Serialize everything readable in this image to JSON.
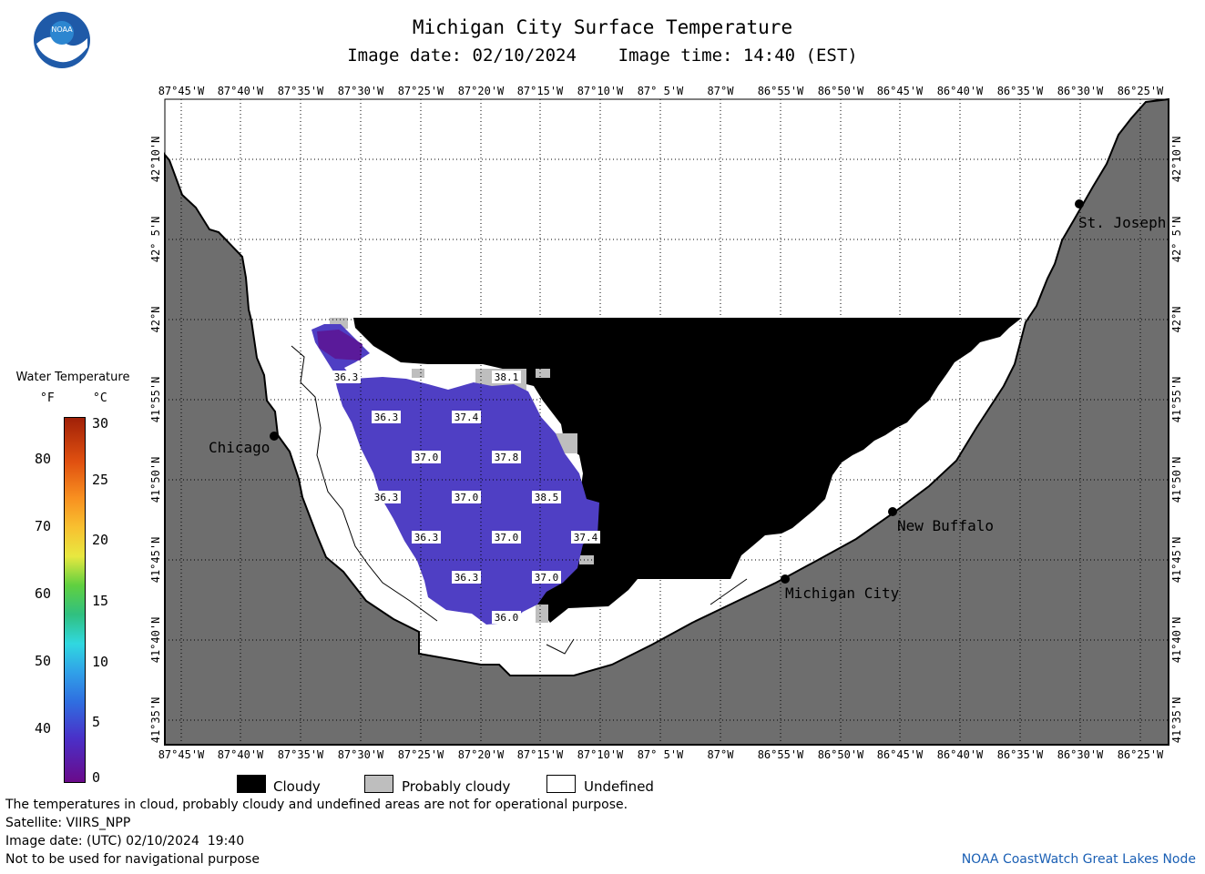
{
  "header": {
    "title": "Michigan City Surface Temperature",
    "subtitle": "Image date: 02/10/2024    Image time: 14:40 (EST)"
  },
  "logo": {
    "text": "NOAA",
    "icon": "noaa-logo-icon"
  },
  "map": {
    "lon_labels": [
      "87°45'W",
      "87°40'W",
      "87°35'W",
      "87°30'W",
      "87°25'W",
      "87°20'W",
      "87°15'W",
      "87°10'W",
      "87° 5'W",
      "87°W",
      "86°55'W",
      "86°50'W",
      "86°45'W",
      "86°40'W",
      "86°35'W",
      "86°30'W",
      "86°25'W"
    ],
    "lat_labels": [
      "42°10'N",
      "42° 5'N",
      "42°N",
      "41°55'N",
      "41°50'N",
      "41°45'N",
      "41°40'N",
      "41°35'N"
    ],
    "cities": [
      {
        "name": "Chicago",
        "icon": "city-dot-icon"
      },
      {
        "name": "St. Joseph",
        "icon": "city-dot-icon"
      },
      {
        "name": "New Buffalo",
        "icon": "city-dot-icon"
      },
      {
        "name": "Michigan City",
        "icon": "city-dot-icon"
      }
    ],
    "temperature_labels": [
      "36.3",
      "38.1",
      "36.3",
      "37.4",
      "37.0",
      "37.8",
      "36.3",
      "37.0",
      "38.5",
      "36.3",
      "37.0",
      "37.4",
      "36.3",
      "37.0",
      "36.0"
    ],
    "colors": {
      "land": "#6e6e6e",
      "cloudy": "#000000",
      "probably_cloudy": "#bebebe",
      "undefined": "#ffffff",
      "water_temp": "#4f3fc4"
    }
  },
  "legend": {
    "title": "Water Temperature",
    "f_header": "°F",
    "c_header": "°C",
    "f_ticks": [
      "80",
      "70",
      "60",
      "50",
      "40"
    ],
    "c_ticks": [
      "30",
      "25",
      "20",
      "15",
      "10",
      "5",
      "0"
    ]
  },
  "key": {
    "cloudy": "Cloudy",
    "probably_cloudy": "Probably cloudy",
    "undefined": "Undefined"
  },
  "footer": {
    "line1": "The temperatures in cloud, probably cloudy and undefined areas are not for operational purpose.",
    "line2": "Satellite: VIIRS_NPP",
    "line3": "Image date: (UTC) 02/10/2024  19:40",
    "line4": "Not to be used for navigational purpose",
    "credit": "NOAA CoastWatch Great Lakes Node"
  }
}
